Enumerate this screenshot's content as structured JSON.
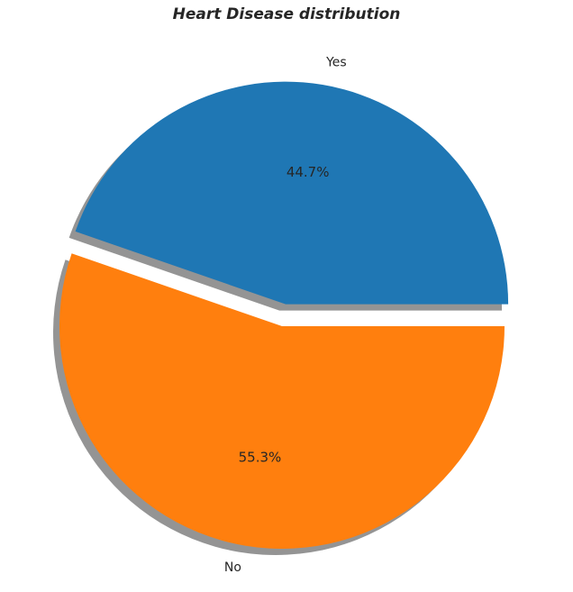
{
  "chart_data": {
    "type": "pie",
    "title": "Heart Disease distribution",
    "labels": [
      "Yes",
      "No"
    ],
    "values": [
      44.7,
      55.3
    ],
    "percent_labels": [
      "44.7%",
      "55.3%"
    ],
    "colors": [
      "#1f77b4",
      "#ff7f0e"
    ],
    "exploded": [
      true,
      false
    ],
    "shadow": true
  }
}
